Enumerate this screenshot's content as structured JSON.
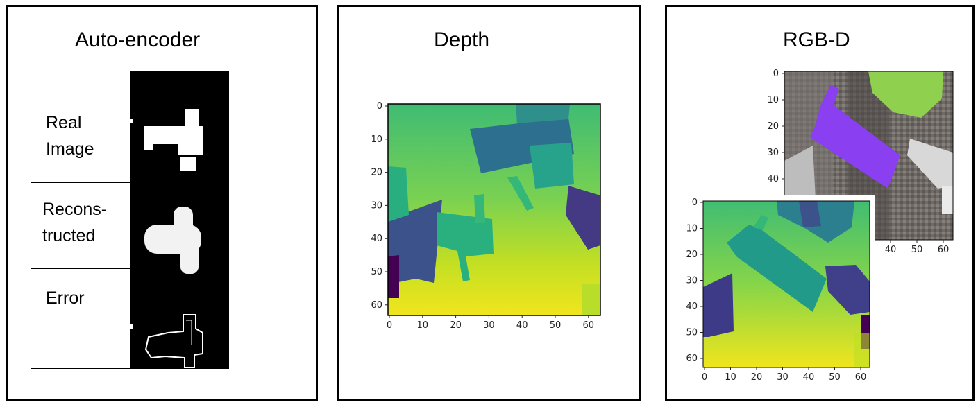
{
  "panels": {
    "autoencoder": {
      "title": "Auto-encoder",
      "rows": [
        {
          "label": "Real\nImage"
        },
        {
          "label": "Recons-\ntructed"
        },
        {
          "label": "Error"
        }
      ]
    },
    "depth": {
      "title": "Depth",
      "x_ticks": [
        "0",
        "10",
        "20",
        "30",
        "40",
        "50",
        "60"
      ],
      "y_ticks": [
        "0",
        "10",
        "20",
        "30",
        "40",
        "50",
        "60"
      ]
    },
    "rgbd": {
      "title": "RGB-D",
      "rgb_y_ticks": [
        "0",
        "10",
        "20",
        "30",
        "40"
      ],
      "rgb_x_ticks": [
        "40",
        "50",
        "60"
      ],
      "depth_x_ticks": [
        "0",
        "10",
        "20",
        "30",
        "40",
        "50",
        "60"
      ],
      "depth_y_ticks": [
        "0",
        "10",
        "20",
        "30",
        "40",
        "50",
        "60"
      ]
    }
  },
  "colors": {
    "viridis_yellow": "#e8e419",
    "viridis_green": "#5ec962",
    "viridis_teal": "#21918c",
    "viridis_blue": "#3b528b",
    "viridis_purple": "#440154",
    "object_purple": "#8a3ff0",
    "object_green": "#8fd14f"
  }
}
